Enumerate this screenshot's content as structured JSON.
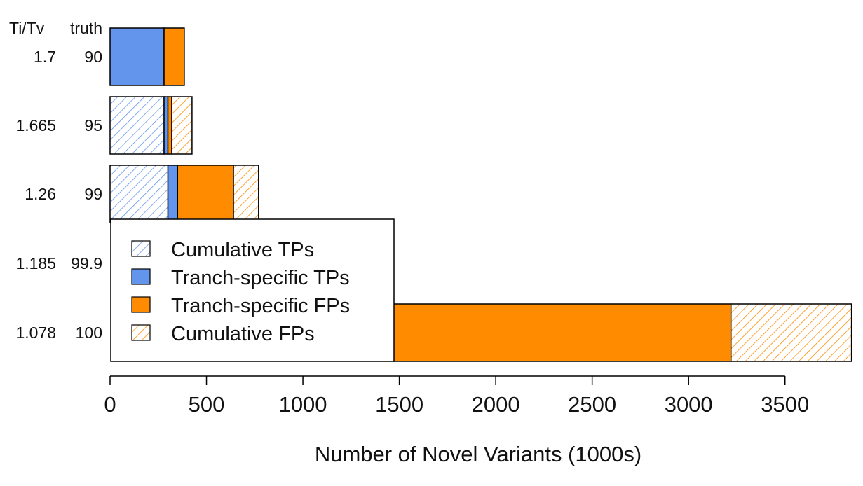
{
  "chart_data": {
    "type": "bar",
    "orientation": "horizontal",
    "stacked": true,
    "xlabel": "Number of Novel Variants (1000s)",
    "xlim": [
      0,
      3850
    ],
    "xticks": [
      0,
      500,
      1000,
      1500,
      2000,
      2500,
      3000,
      3500
    ],
    "row_header_labels": [
      "Ti/Tv",
      "truth"
    ],
    "rows": [
      {
        "titv": "1.7",
        "truth": "90",
        "segments": [
          {
            "series": "Tranch-specific TPs",
            "start": 0,
            "end": 280
          },
          {
            "series": "Tranch-specific FPs",
            "start": 280,
            "end": 385
          }
        ]
      },
      {
        "titv": "1.665",
        "truth": "95",
        "segments": [
          {
            "series": "Cumulative TPs",
            "start": 0,
            "end": 280
          },
          {
            "series": "Tranch-specific TPs",
            "start": 280,
            "end": 300
          },
          {
            "series": "Tranch-specific FPs",
            "start": 300,
            "end": 320
          },
          {
            "series": "Cumulative FPs",
            "start": 320,
            "end": 425
          }
        ]
      },
      {
        "titv": "1.26",
        "truth": "99",
        "segments": [
          {
            "series": "Cumulative TPs",
            "start": 0,
            "end": 300
          },
          {
            "series": "Tranch-specific TPs",
            "start": 300,
            "end": 350
          },
          {
            "series": "Tranch-specific FPs",
            "start": 350,
            "end": 640
          },
          {
            "series": "Cumulative FPs",
            "start": 640,
            "end": 770
          }
        ]
      },
      {
        "titv": "1.185",
        "truth": "99.9",
        "segments": []
      },
      {
        "titv": "1.078",
        "truth": "100",
        "segments": [
          {
            "series": "Tranch-specific FPs",
            "start": 1470,
            "end": 3220
          },
          {
            "series": "Cumulative FPs",
            "start": 3220,
            "end": 3845
          }
        ]
      }
    ],
    "series": [
      {
        "name": "Cumulative TPs",
        "color": "#6495ED",
        "pattern": "hatched"
      },
      {
        "name": "Tranch-specific TPs",
        "color": "#6495ED",
        "pattern": "solid"
      },
      {
        "name": "Tranch-specific FPs",
        "color": "#FF8C00",
        "pattern": "solid"
      },
      {
        "name": "Cumulative FPs",
        "color": "#FF8C00",
        "pattern": "hatched"
      }
    ],
    "legend_position": "bottom-left (overlaying bars)"
  }
}
